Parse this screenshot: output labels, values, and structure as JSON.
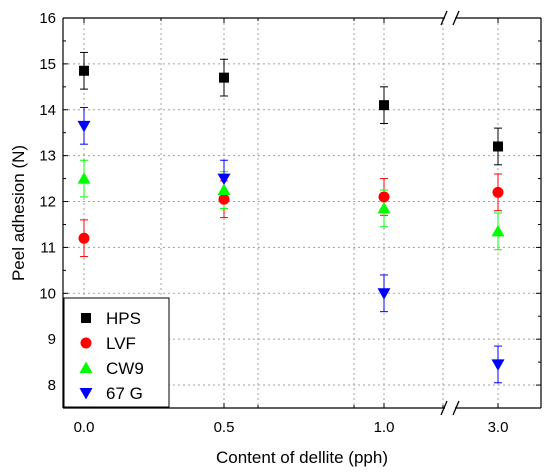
{
  "chart_data": {
    "type": "scatter",
    "title": "",
    "xlabel": "Content of dellite (pph)",
    "ylabel": "Peel adhesion (N)",
    "ylim": [
      7.5,
      16
    ],
    "y_ticks": [
      "8",
      "9",
      "10",
      "11",
      "12",
      "13",
      "14",
      "15",
      "16"
    ],
    "categories": [
      "0.0",
      "0.5",
      "1.0",
      "3.0"
    ],
    "x_axis_break": "between 1.0 and 3.0",
    "grid": true,
    "error_bars": true,
    "legend_position": "bottom-left",
    "series": [
      {
        "name": "HPS",
        "marker": "square",
        "color": "#000000",
        "values": [
          14.85,
          14.7,
          14.1,
          13.2
        ],
        "errors": [
          0.4,
          0.4,
          0.4,
          0.4
        ]
      },
      {
        "name": "LVF",
        "marker": "circle",
        "color": "#ff0000",
        "values": [
          11.2,
          12.05,
          12.1,
          12.2
        ],
        "errors": [
          0.4,
          0.4,
          0.4,
          0.4
        ]
      },
      {
        "name": "CW9",
        "marker": "triangle-up",
        "color": "#00ff00",
        "values": [
          12.5,
          12.25,
          11.85,
          11.35
        ],
        "errors": [
          0.4,
          0.4,
          0.4,
          0.4
        ]
      },
      {
        "name": "67 G",
        "marker": "triangle-down",
        "color": "#0000ff",
        "values": [
          13.65,
          12.5,
          10.0,
          8.45
        ],
        "errors": [
          0.4,
          0.4,
          0.4,
          0.4
        ]
      }
    ]
  }
}
